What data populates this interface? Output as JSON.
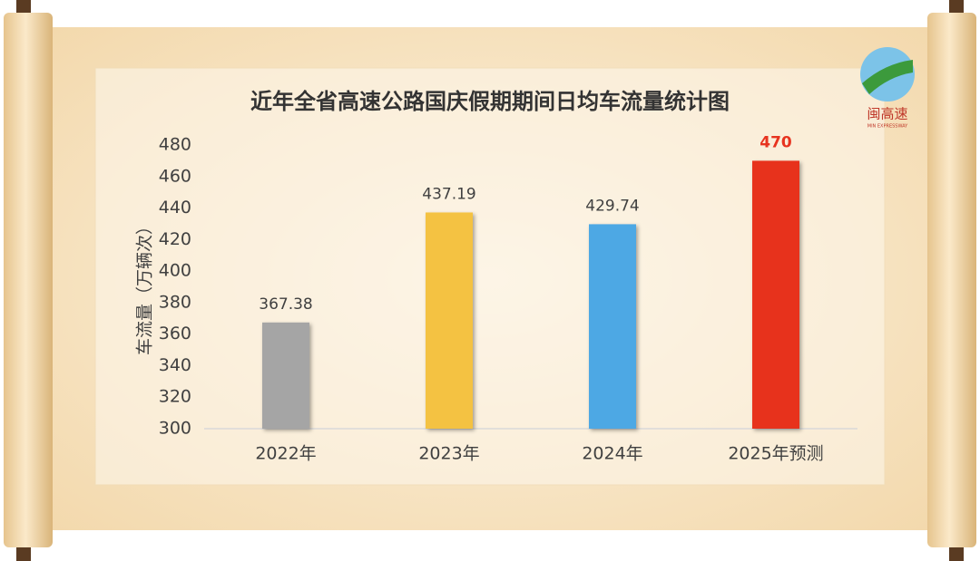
{
  "chart_data": {
    "type": "bar",
    "title": "近年全省高速公路国庆假期期间日均车流量统计图",
    "y_label": "车流量（万辆次）",
    "categories": [
      "2022年",
      "2023年",
      "2024年",
      "2025年预测"
    ],
    "values": [
      367.38,
      437.19,
      429.74,
      470
    ],
    "colors": [
      "#a5a5a5",
      "#f4c243",
      "#4ea8e4",
      "#e7331f"
    ],
    "value_label_colors": [
      "#404040",
      "#404040",
      "#404040",
      "#e7331f"
    ],
    "ylim": [
      300,
      480
    ],
    "yticks": [
      300,
      320,
      340,
      360,
      380,
      400,
      420,
      440,
      460,
      480
    ],
    "grid": false
  },
  "logo": {
    "name": "闽高速",
    "subtitle": "MIN EXPRESSWAY"
  }
}
